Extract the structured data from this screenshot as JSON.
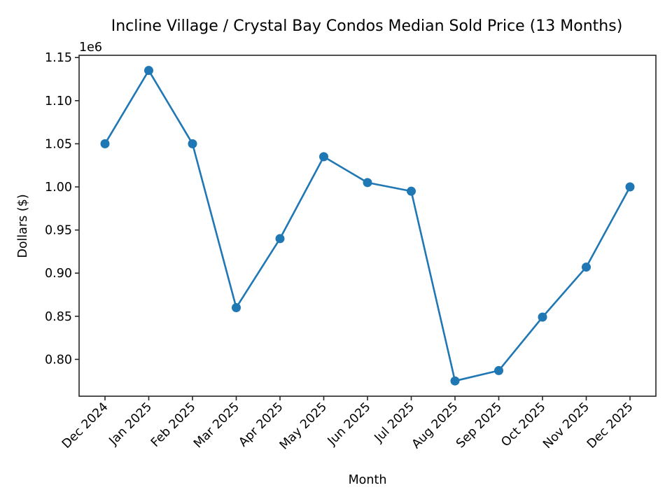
{
  "chart_data": {
    "type": "line",
    "title": "Incline Village / Crystal Bay Condos Median Sold Price (13 Months)",
    "xlabel": "Month",
    "ylabel": "Dollars ($)",
    "y_offset_label": "1e6",
    "categories": [
      "Dec 2024",
      "Jan 2025",
      "Feb 2025",
      "Mar 2025",
      "Apr 2025",
      "May 2025",
      "Jun 2025",
      "Jul 2025",
      "Aug 2025",
      "Sep 2025",
      "Oct 2025",
      "Nov 2025",
      "Dec 2025"
    ],
    "series": [
      {
        "name": "Median Sold Price",
        "color": "#1f77b4",
        "marker": "circle",
        "values": [
          1050000,
          1135000,
          1050000,
          860000,
          940000,
          1035000,
          1005000,
          995000,
          775000,
          787000,
          849000,
          907000,
          1000000
        ]
      }
    ],
    "yticks": [
      0.8,
      0.85,
      0.9,
      0.95,
      1.0,
      1.05,
      1.1,
      1.15
    ],
    "ytick_labels": [
      "0.80",
      "0.85",
      "0.90",
      "0.95",
      "1.00",
      "1.05",
      "1.10",
      "1.15"
    ],
    "ylim": [
      757000,
      1152000
    ],
    "grid": false,
    "legend": null
  }
}
